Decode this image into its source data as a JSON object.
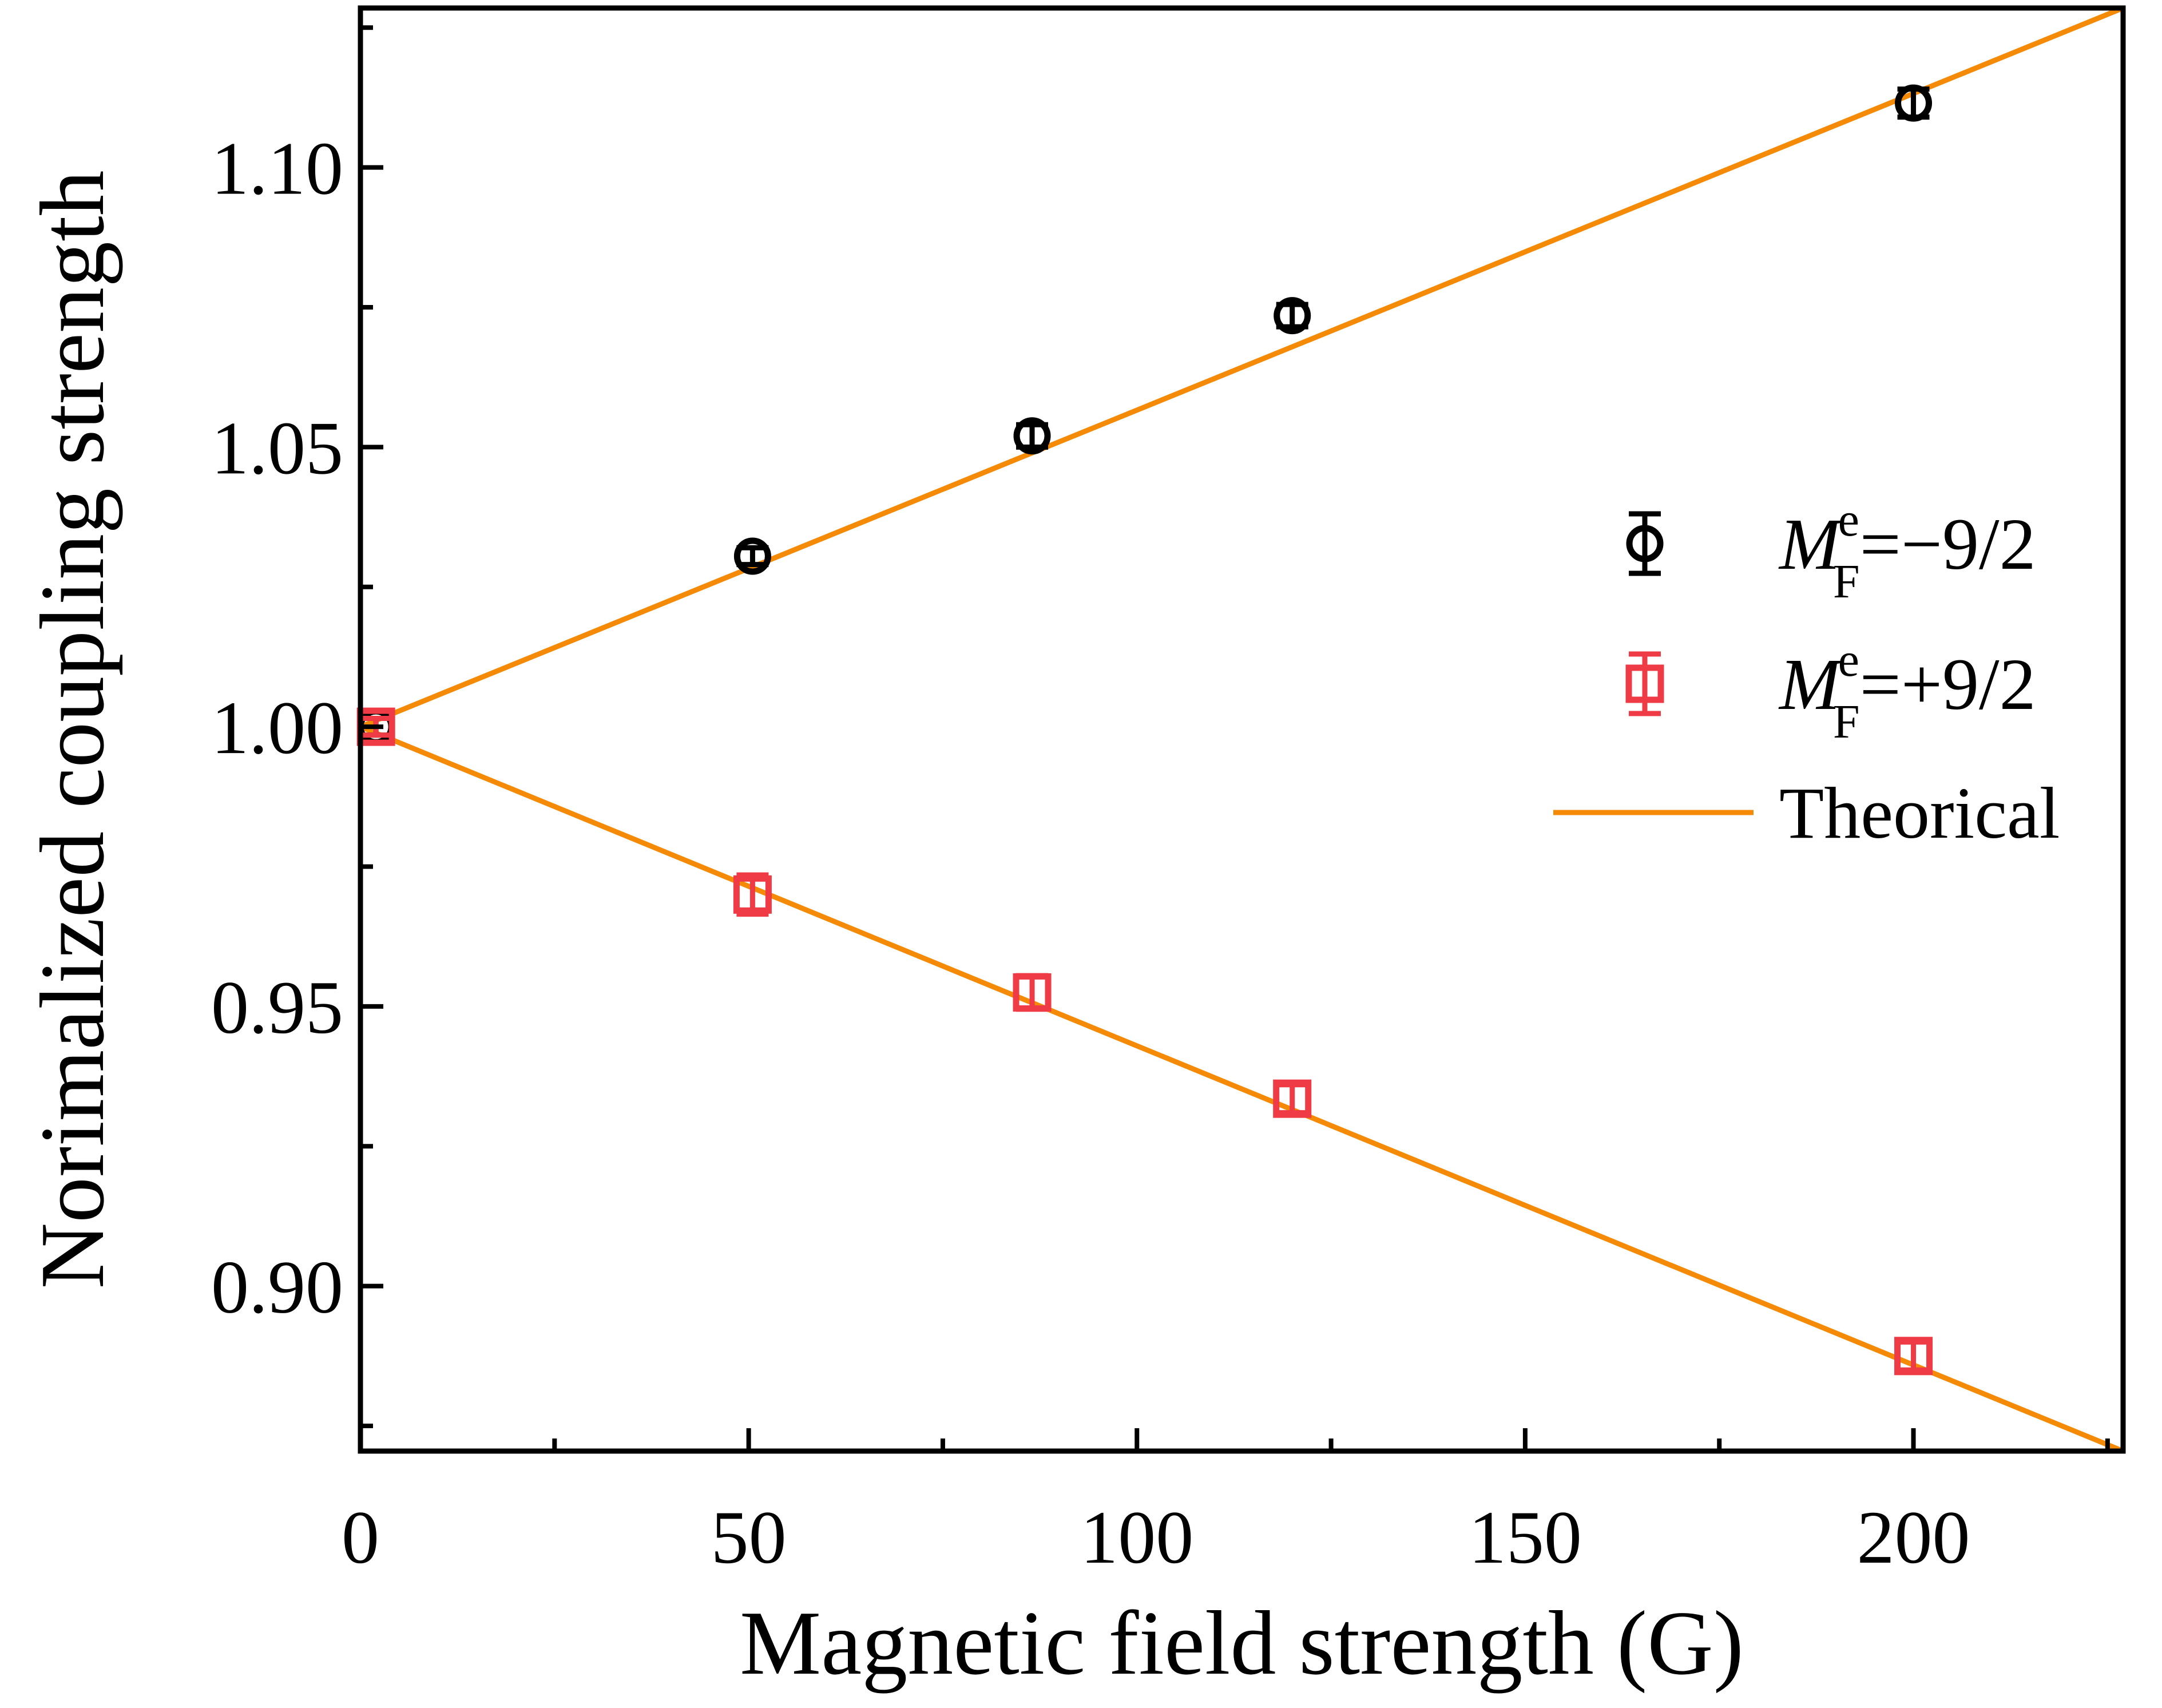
{
  "chart_data": {
    "type": "scatter",
    "xlabel": "Magnetic field strength (G)",
    "ylabel": "Norimalized coupling strength",
    "xlim": [
      0,
      227
    ],
    "ylim": [
      0.8705,
      1.1285
    ],
    "x_ticks": [
      0,
      50,
      100,
      150,
      200
    ],
    "x_tick_labels": [
      "0",
      "50",
      "100",
      "150",
      "200"
    ],
    "x_minor_ticks": [
      25,
      75,
      125,
      175,
      225
    ],
    "y_ticks": [
      0.9,
      0.95,
      1.0,
      1.05,
      1.1
    ],
    "y_tick_labels": [
      "0.90",
      "0.95",
      "1.00",
      "1.05",
      "1.10"
    ],
    "y_minor_ticks": [
      0.875,
      0.925,
      0.975,
      1.025,
      1.075,
      1.125
    ],
    "grid": false,
    "legend_position": "right",
    "series": [
      {
        "name": "−9/2",
        "legend": {
          "italic": "M",
          "sup": "e",
          "sub": "F",
          "rest": "=−9/2"
        },
        "marker": "circle",
        "color": "#000000",
        "x": [
          2,
          50.5,
          86.5,
          120,
          200
        ],
        "y": [
          1.0,
          1.0305,
          1.052,
          1.0735,
          1.1115
        ],
        "yerr": [
          0.0015,
          0.0015,
          0.002,
          0.002,
          0.0025
        ]
      },
      {
        "name": "+9/2",
        "legend": {
          "italic": "M",
          "sup": "e",
          "sub": "F",
          "rest": "=+9/2"
        },
        "marker": "square",
        "color": "#ef3b45",
        "x": [
          2,
          50.5,
          86.5,
          120,
          200
        ],
        "y": [
          1.0,
          0.97,
          0.9525,
          0.9335,
          0.8875
        ],
        "yerr": [
          0.0015,
          0.0035,
          0.003,
          0.0025,
          0.0025
        ]
      },
      {
        "name": "Theorical",
        "type": "line",
        "color": "#f58a07",
        "lines": [
          {
            "x": [
              0,
              227
            ],
            "y": [
              1.0,
              1.1285
            ]
          },
          {
            "x": [
              0,
              227
            ],
            "y": [
              1.0,
              0.8705
            ]
          }
        ]
      }
    ]
  }
}
